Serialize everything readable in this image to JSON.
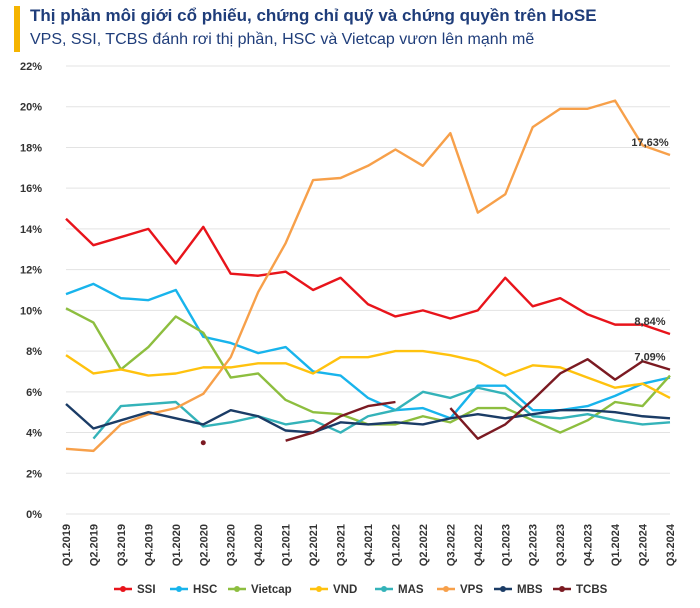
{
  "header": {
    "title": "Thị phần môi giới cổ phiếu, chứng chỉ quỹ và chứng quyền trên HoSE",
    "subtitle": "VPS, SSI, TCBS đánh rơi thị phần, HSC và Vietcap vươn lên mạnh mẽ"
  },
  "chart_data": {
    "type": "line",
    "title": "Thị phần môi giới cổ phiếu, chứng chỉ quỹ và chứng quyền trên HoSE",
    "ylim": [
      0,
      22
    ],
    "yticks": [
      "0%",
      "2%",
      "4%",
      "6%",
      "8%",
      "10%",
      "12%",
      "14%",
      "16%",
      "18%",
      "20%",
      "22%"
    ],
    "grid": true,
    "legend_position": "bottom",
    "categories": [
      "Q1.2019",
      "Q2.2019",
      "Q3.2019",
      "Q4.2019",
      "Q1.2020",
      "Q2.2020",
      "Q3.2020",
      "Q4.2020",
      "Q1.2021",
      "Q2.2021",
      "Q3.2021",
      "Q4.2021",
      "Q1.2022",
      "Q2.2022",
      "Q3.2022",
      "Q4.2022",
      "Q1.2023",
      "Q2.2023",
      "Q3.2023",
      "Q4.2023",
      "Q1.2024",
      "Q2.2024",
      "Q3.2024"
    ],
    "x_labeled": [
      "Q1.2019",
      "Q2.2019",
      "Q3.2019",
      "Q4.2019",
      "Q1.2020",
      "Q2.2020",
      "Q3.2020",
      "Q4.2020",
      "Q1.2021",
      "Q2.2021",
      "Q3.2021",
      "Q4.2021",
      "Q1.2022",
      "Q2.2022",
      "Q3.2022",
      "Q4.2022",
      "Q1.2023",
      "Q2.2023",
      "Q3.2023",
      "Q4.2023",
      "Q1.2024",
      "Q2.2024",
      "Q3.2024"
    ],
    "series": [
      {
        "name": "SSI",
        "color": "#e8141b",
        "values": [
          14.5,
          13.2,
          13.6,
          14.0,
          12.3,
          14.1,
          11.8,
          11.7,
          11.9,
          11.0,
          11.6,
          10.3,
          9.7,
          10.0,
          9.6,
          10.0,
          11.6,
          10.2,
          10.6,
          9.8,
          9.3,
          9.3,
          8.84
        ],
        "end_label": "8,84%"
      },
      {
        "name": "HSC",
        "color": "#18b4ec",
        "values": [
          10.8,
          11.3,
          10.6,
          10.5,
          11.0,
          8.7,
          8.4,
          7.9,
          8.2,
          7.0,
          6.8,
          5.7,
          5.1,
          5.2,
          4.7,
          6.3,
          6.3,
          5.1,
          5.1,
          5.3,
          5.8,
          6.4,
          6.7
        ]
      },
      {
        "name": "Vietcap",
        "color": "#8dbe3f",
        "values": [
          10.1,
          9.4,
          7.1,
          8.2,
          9.7,
          8.9,
          6.7,
          6.9,
          5.6,
          5.0,
          4.9,
          4.4,
          4.4,
          4.8,
          4.5,
          5.2,
          5.2,
          4.6,
          4.0,
          4.6,
          5.5,
          5.3,
          6.8
        ]
      },
      {
        "name": "VND",
        "color": "#ffc20e",
        "values": [
          7.8,
          6.9,
          7.1,
          6.8,
          6.9,
          7.2,
          7.2,
          7.4,
          7.4,
          6.9,
          7.7,
          7.7,
          8.0,
          8.0,
          7.8,
          7.5,
          6.8,
          7.3,
          7.2,
          6.7,
          6.2,
          6.4,
          5.7
        ]
      },
      {
        "name": "MAS",
        "color": "#34b3b9",
        "values": [
          null,
          3.7,
          5.3,
          5.4,
          5.5,
          4.3,
          4.5,
          4.8,
          4.4,
          4.6,
          4.0,
          4.8,
          5.1,
          6.0,
          5.7,
          6.2,
          5.9,
          4.8,
          4.7,
          4.9,
          4.6,
          4.4,
          4.5
        ]
      },
      {
        "name": "VPS",
        "color": "#f7a04a",
        "values": [
          3.2,
          3.1,
          4.4,
          4.9,
          5.2,
          5.9,
          7.7,
          10.9,
          13.3,
          16.4,
          16.5,
          17.1,
          17.9,
          17.1,
          18.7,
          14.8,
          15.7,
          19.0,
          19.9,
          19.9,
          20.3,
          18.1,
          17.63
        ],
        "end_label": "17,63%"
      },
      {
        "name": "MBS",
        "color": "#1b3c66",
        "values": [
          5.4,
          4.2,
          4.6,
          5.0,
          4.7,
          4.4,
          5.1,
          4.8,
          4.1,
          4.0,
          4.5,
          4.4,
          4.5,
          4.4,
          4.7,
          4.9,
          4.7,
          4.9,
          5.1,
          5.1,
          5.0,
          4.8,
          4.7
        ]
      },
      {
        "name": "TCBS",
        "color": "#7b1a22",
        "values": [
          null,
          null,
          null,
          null,
          null,
          3.5,
          null,
          null,
          3.6,
          4.0,
          4.8,
          5.3,
          5.5,
          null,
          5.2,
          3.7,
          4.4,
          5.6,
          6.9,
          7.6,
          6.6,
          7.5,
          7.09
        ],
        "end_label": "7,09%"
      }
    ]
  }
}
